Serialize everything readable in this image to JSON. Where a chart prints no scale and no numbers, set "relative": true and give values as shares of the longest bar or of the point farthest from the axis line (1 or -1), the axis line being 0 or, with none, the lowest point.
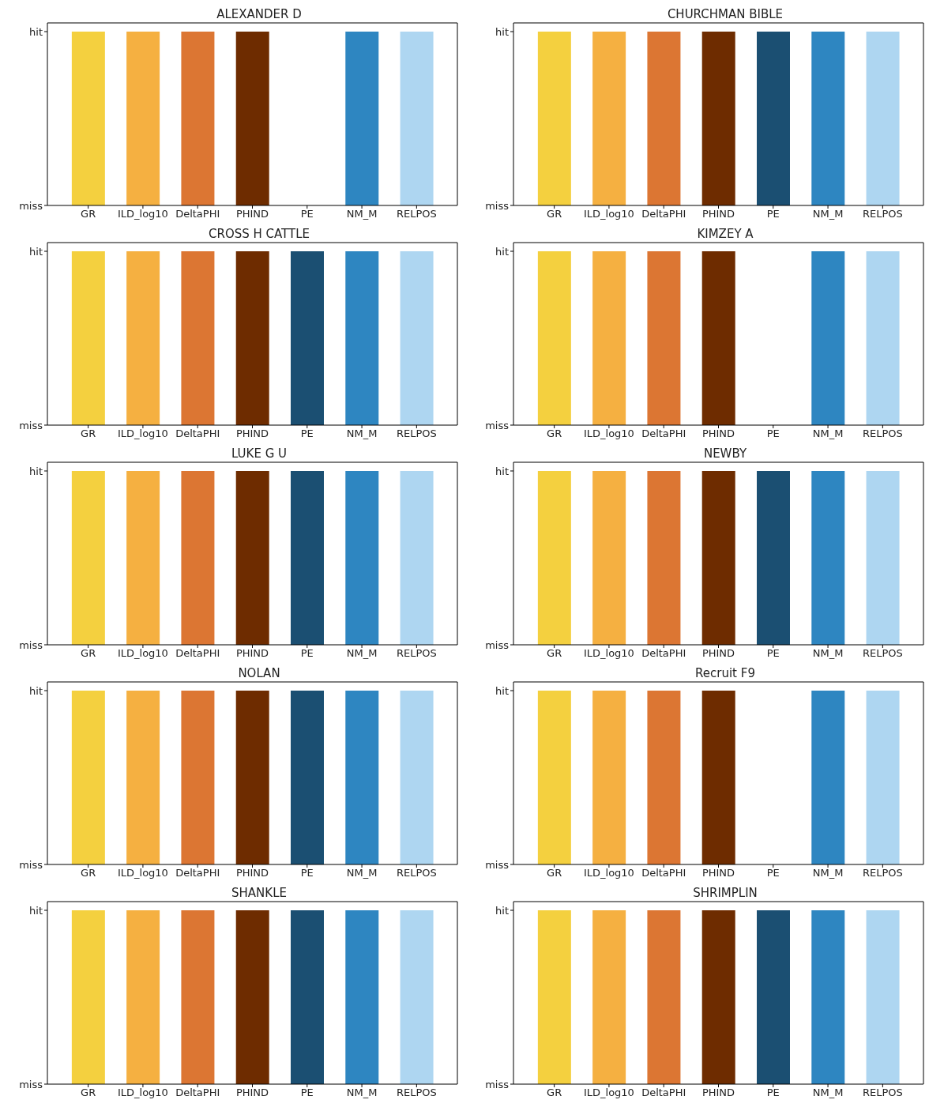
{
  "chart_data": [
    {
      "type": "bar",
      "title": "ALEXANDER D",
      "categories": [
        "GR",
        "ILD_log10",
        "DeltaPHI",
        "PHIND",
        "PE",
        "NM_M",
        "RELPOS"
      ],
      "values": [
        1,
        1,
        1,
        1,
        0,
        1,
        1
      ],
      "colors": [
        "#f4d03f",
        "#f5b041",
        "#dc7633",
        "#6e2c00",
        "#1b4f72",
        "#2e86c1",
        "#aed6f1"
      ],
      "relative": true,
      "annotations": [
        "miss",
        "hit"
      ]
    },
    {
      "type": "bar",
      "title": "CHURCHMAN BIBLE",
      "categories": [
        "GR",
        "ILD_log10",
        "DeltaPHI",
        "PHIND",
        "PE",
        "NM_M",
        "RELPOS"
      ],
      "values": [
        1,
        1,
        1,
        1,
        1,
        1,
        1
      ],
      "colors": [
        "#f4d03f",
        "#f5b041",
        "#dc7633",
        "#6e2c00",
        "#1b4f72",
        "#2e86c1",
        "#aed6f1"
      ],
      "relative": true,
      "annotations": [
        "miss",
        "hit"
      ]
    },
    {
      "type": "bar",
      "title": "CROSS H CATTLE",
      "categories": [
        "GR",
        "ILD_log10",
        "DeltaPHI",
        "PHIND",
        "PE",
        "NM_M",
        "RELPOS"
      ],
      "values": [
        1,
        1,
        1,
        1,
        1,
        1,
        1
      ],
      "colors": [
        "#f4d03f",
        "#f5b041",
        "#dc7633",
        "#6e2c00",
        "#1b4f72",
        "#2e86c1",
        "#aed6f1"
      ],
      "relative": true,
      "annotations": [
        "miss",
        "hit"
      ]
    },
    {
      "type": "bar",
      "title": "KIMZEY A",
      "categories": [
        "GR",
        "ILD_log10",
        "DeltaPHI",
        "PHIND",
        "PE",
        "NM_M",
        "RELPOS"
      ],
      "values": [
        1,
        1,
        1,
        1,
        0,
        1,
        1
      ],
      "colors": [
        "#f4d03f",
        "#f5b041",
        "#dc7633",
        "#6e2c00",
        "#1b4f72",
        "#2e86c1",
        "#aed6f1"
      ],
      "relative": true,
      "annotations": [
        "miss",
        "hit"
      ]
    },
    {
      "type": "bar",
      "title": "LUKE G U",
      "categories": [
        "GR",
        "ILD_log10",
        "DeltaPHI",
        "PHIND",
        "PE",
        "NM_M",
        "RELPOS"
      ],
      "values": [
        1,
        1,
        1,
        1,
        1,
        1,
        1
      ],
      "colors": [
        "#f4d03f",
        "#f5b041",
        "#dc7633",
        "#6e2c00",
        "#1b4f72",
        "#2e86c1",
        "#aed6f1"
      ],
      "relative": true,
      "annotations": [
        "miss",
        "hit"
      ]
    },
    {
      "type": "bar",
      "title": "NEWBY",
      "categories": [
        "GR",
        "ILD_log10",
        "DeltaPHI",
        "PHIND",
        "PE",
        "NM_M",
        "RELPOS"
      ],
      "values": [
        1,
        1,
        1,
        1,
        1,
        1,
        1
      ],
      "colors": [
        "#f4d03f",
        "#f5b041",
        "#dc7633",
        "#6e2c00",
        "#1b4f72",
        "#2e86c1",
        "#aed6f1"
      ],
      "relative": true,
      "annotations": [
        "miss",
        "hit"
      ]
    },
    {
      "type": "bar",
      "title": "NOLAN",
      "categories": [
        "GR",
        "ILD_log10",
        "DeltaPHI",
        "PHIND",
        "PE",
        "NM_M",
        "RELPOS"
      ],
      "values": [
        1,
        1,
        1,
        1,
        1,
        1,
        1
      ],
      "colors": [
        "#f4d03f",
        "#f5b041",
        "#dc7633",
        "#6e2c00",
        "#1b4f72",
        "#2e86c1",
        "#aed6f1"
      ],
      "relative": true,
      "annotations": [
        "miss",
        "hit"
      ]
    },
    {
      "type": "bar",
      "title": "Recruit F9",
      "categories": [
        "GR",
        "ILD_log10",
        "DeltaPHI",
        "PHIND",
        "PE",
        "NM_M",
        "RELPOS"
      ],
      "values": [
        1,
        1,
        1,
        1,
        0,
        1,
        1
      ],
      "colors": [
        "#f4d03f",
        "#f5b041",
        "#dc7633",
        "#6e2c00",
        "#1b4f72",
        "#2e86c1",
        "#aed6f1"
      ],
      "relative": true,
      "annotations": [
        "miss",
        "hit"
      ]
    },
    {
      "type": "bar",
      "title": "SHANKLE",
      "categories": [
        "GR",
        "ILD_log10",
        "DeltaPHI",
        "PHIND",
        "PE",
        "NM_M",
        "RELPOS"
      ],
      "values": [
        1,
        1,
        1,
        1,
        1,
        1,
        1
      ],
      "colors": [
        "#f4d03f",
        "#f5b041",
        "#dc7633",
        "#6e2c00",
        "#1b4f72",
        "#2e86c1",
        "#aed6f1"
      ],
      "relative": true,
      "annotations": [
        "miss",
        "hit"
      ]
    },
    {
      "type": "bar",
      "title": "SHRIMPLIN",
      "categories": [
        "GR",
        "ILD_log10",
        "DeltaPHI",
        "PHIND",
        "PE",
        "NM_M",
        "RELPOS"
      ],
      "values": [
        1,
        1,
        1,
        1,
        1,
        1,
        1
      ],
      "colors": [
        "#f4d03f",
        "#f5b041",
        "#dc7633",
        "#6e2c00",
        "#1b4f72",
        "#2e86c1",
        "#aed6f1"
      ],
      "relative": true,
      "annotations": [
        "miss",
        "hit"
      ]
    }
  ]
}
